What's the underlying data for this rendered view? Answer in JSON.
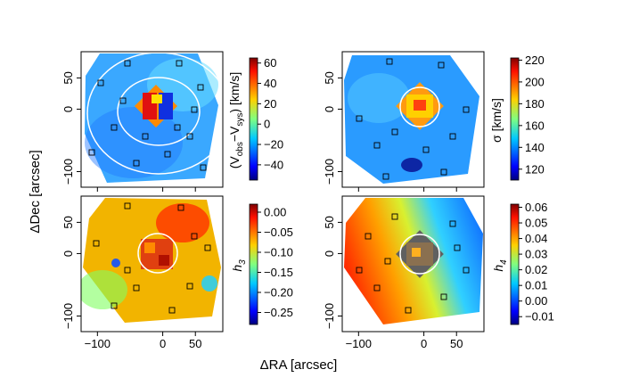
{
  "chart_data": {
    "type": "heatmap",
    "xlabel": "ΔRA [arcsec]",
    "ylabel": "ΔDec [arcsec]",
    "xlim": [
      -125,
      92
    ],
    "ylim": [
      -125,
      92
    ],
    "x_ticks": [
      -100,
      0,
      50
    ],
    "x_tick_labels": [
      "−100",
      "0",
      "50"
    ],
    "y_ticks": [
      50,
      0,
      -100
    ],
    "y_tick_labels": [
      "50",
      "0",
      "−100"
    ],
    "panels": [
      {
        "id": "velocity",
        "colorbar_label": "(V_obs − V_sys) [km/s]",
        "label_main": "(V",
        "label_sub1": "obs",
        "label_mid": "−V",
        "label_sub2": "sys",
        "label_end": ") [km/s]",
        "range": [
          -55,
          65
        ],
        "ticks": [
          60,
          40,
          20,
          0,
          -20,
          -40
        ],
        "tick_labels": [
          "60",
          "40",
          "20",
          "0",
          "−20",
          "−40"
        ]
      },
      {
        "id": "dispersion",
        "colorbar_label": "σ [km/s]",
        "label_main": "σ [km/s]",
        "range": [
          110,
          222
        ],
        "ticks": [
          220,
          200,
          180,
          160,
          140,
          120
        ],
        "tick_labels": [
          "220",
          "200",
          "180",
          "160",
          "140",
          "120"
        ]
      },
      {
        "id": "h3",
        "colorbar_label": "h3",
        "label_main": "h",
        "label_sub1": "3",
        "range": [
          -0.28,
          0.02
        ],
        "ticks": [
          0.0,
          -0.05,
          -0.1,
          -0.15,
          -0.2,
          -0.25
        ],
        "tick_labels": [
          "0.00",
          "−0.05",
          "−0.10",
          "−0.15",
          "−0.20",
          "−0.25"
        ]
      },
      {
        "id": "h4",
        "colorbar_label": "h4",
        "label_main": "h",
        "label_sub1": "4",
        "range": [
          -0.015,
          0.062
        ],
        "ticks": [
          0.06,
          0.05,
          0.04,
          0.03,
          0.02,
          0.01,
          0.0,
          -0.01
        ],
        "tick_labels": [
          "0.06",
          "0.05",
          "0.04",
          "0.03",
          "0.02",
          "0.01",
          "0.00",
          "−0.01"
        ]
      }
    ],
    "colormap": [
      "#00007f",
      "#0000ff",
      "#0080ff",
      "#00ffff",
      "#80ff80",
      "#ffff00",
      "#ff8000",
      "#ff0000",
      "#7f0000"
    ]
  }
}
